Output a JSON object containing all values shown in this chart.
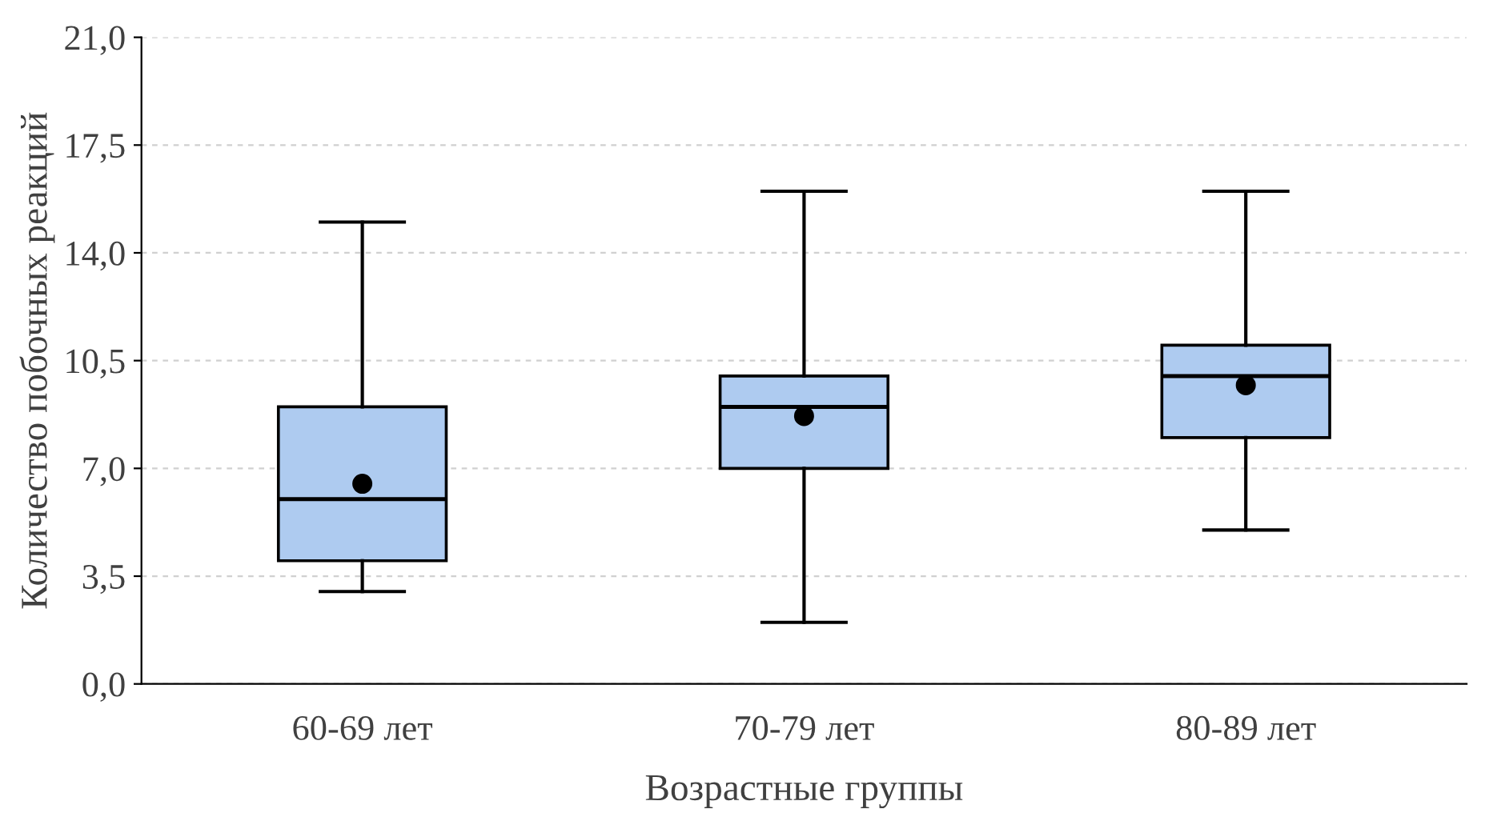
{
  "chart_data": {
    "type": "box",
    "xlabel": "Возрастные группы",
    "ylabel": "Количество побочных реакций",
    "categories": [
      "60-69 лет",
      "70-79 лет",
      "80-89 лет"
    ],
    "boxes": [
      {
        "low": 3,
        "q1": 4,
        "median": 6,
        "q3": 9,
        "high": 15,
        "mean": 6.5
      },
      {
        "low": 2,
        "q1": 7,
        "median": 9,
        "q3": 10,
        "high": 16,
        "mean": 8.7
      },
      {
        "low": 5,
        "q1": 8,
        "median": 10,
        "q3": 11,
        "high": 16,
        "mean": 9.7
      }
    ],
    "color": "#aecbf0",
    "ylim": [
      0,
      21
    ],
    "yticks": [
      {
        "value": 0,
        "label": "0,0"
      },
      {
        "value": 3.5,
        "label": "3,5"
      },
      {
        "value": 7,
        "label": "7,0"
      },
      {
        "value": 10.5,
        "label": "10,5"
      },
      {
        "value": 14,
        "label": "14,0"
      },
      {
        "value": 17.5,
        "label": "17,5"
      },
      {
        "value": 21,
        "label": "21,0"
      }
    ],
    "grid": "y",
    "legend": false
  }
}
